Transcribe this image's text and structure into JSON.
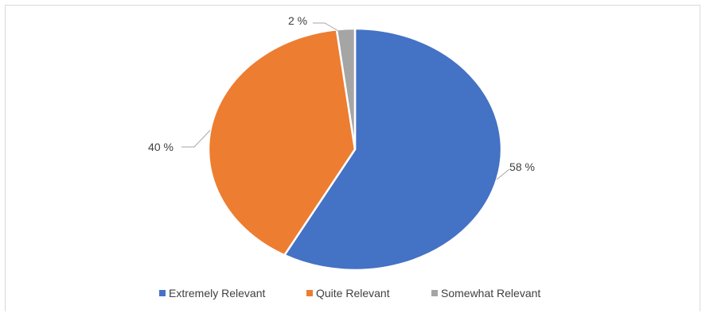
{
  "chart_data": {
    "type": "pie",
    "title": "",
    "categories": [
      "Extremely Relevant",
      "Quite Relevant",
      "Somewhat Relevant"
    ],
    "values": [
      58,
      40,
      2
    ],
    "data_labels": [
      "58 %",
      "40 %",
      "2 %"
    ],
    "colors": [
      "#4472C4",
      "#ED7D31",
      "#A5A5A5"
    ],
    "legend_position": "bottom"
  }
}
